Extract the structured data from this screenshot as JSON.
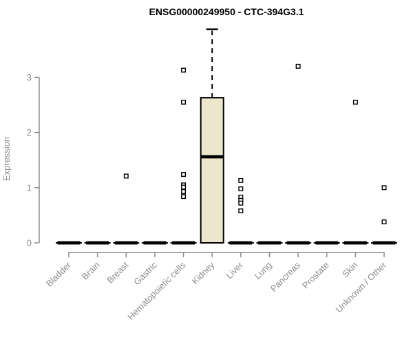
{
  "chart_data": {
    "type": "box",
    "title": "ENSG00000249950 - CTC-394G3.1",
    "ylabel": "Expression",
    "yticks": [
      0,
      1,
      2,
      3
    ],
    "ylim": [
      0,
      4.0
    ],
    "grid": false,
    "legend": "none",
    "categories": [
      "Bladder",
      "Brain",
      "Breast",
      "Gastric",
      "Hematopoietic cells",
      "Kidney",
      "Liver",
      "Lung",
      "Pancreas",
      "Prostate",
      "Skin",
      "Unknown / Other"
    ],
    "boxes": [
      {
        "category": "Bladder",
        "q1": 0,
        "median": 0,
        "q3": 0,
        "whisker_low": 0,
        "whisker_high": 0,
        "outliers": []
      },
      {
        "category": "Brain",
        "q1": 0,
        "median": 0,
        "q3": 0,
        "whisker_low": 0,
        "whisker_high": 0,
        "outliers": []
      },
      {
        "category": "Breast",
        "q1": 0,
        "median": 0,
        "q3": 0,
        "whisker_low": 0,
        "whisker_high": 0,
        "outliers": [
          1.21
        ]
      },
      {
        "category": "Gastric",
        "q1": 0,
        "median": 0,
        "q3": 0,
        "whisker_low": 0,
        "whisker_high": 0,
        "outliers": []
      },
      {
        "category": "Hematopoietic cells",
        "q1": 0,
        "median": 0,
        "q3": 0,
        "whisker_low": 0,
        "whisker_high": 0,
        "outliers": [
          3.13,
          2.55,
          1.24,
          1.05,
          1.01,
          0.93,
          0.84
        ]
      },
      {
        "category": "Kidney",
        "q1": 0,
        "median": 1.56,
        "q3": 2.63,
        "whisker_low": 0,
        "whisker_high": 3.87,
        "outliers": []
      },
      {
        "category": "Liver",
        "q1": 0,
        "median": 0,
        "q3": 0,
        "whisker_low": 0,
        "whisker_high": 0,
        "outliers": [
          1.13,
          0.98,
          0.83,
          0.77,
          0.72,
          0.58
        ]
      },
      {
        "category": "Lung",
        "q1": 0,
        "median": 0,
        "q3": 0,
        "whisker_low": 0,
        "whisker_high": 0,
        "outliers": []
      },
      {
        "category": "Pancreas",
        "q1": 0,
        "median": 0,
        "q3": 0,
        "whisker_low": 0,
        "whisker_high": 0,
        "outliers": [
          3.2
        ]
      },
      {
        "category": "Prostate",
        "q1": 0,
        "median": 0,
        "q3": 0,
        "whisker_low": 0,
        "whisker_high": 0,
        "outliers": []
      },
      {
        "category": "Skin",
        "q1": 0,
        "median": 0,
        "q3": 0,
        "whisker_low": 0,
        "whisker_high": 0,
        "outliers": [
          2.55
        ]
      },
      {
        "category": "Unknown / Other",
        "q1": 0,
        "median": 0,
        "q3": 0,
        "whisker_low": 0,
        "whisker_high": 0,
        "outliers": [
          1.0,
          0.38
        ]
      }
    ],
    "colors": {
      "box_fill": "#ece6cd",
      "box_stroke": "#000000",
      "median": "#000000",
      "outlier_stroke": "#000000",
      "outlier_fill": "#ffffff",
      "axis": "#8c8c8c",
      "text": "#8c8c8c",
      "title": "#000000",
      "background": "#ffffff"
    }
  }
}
